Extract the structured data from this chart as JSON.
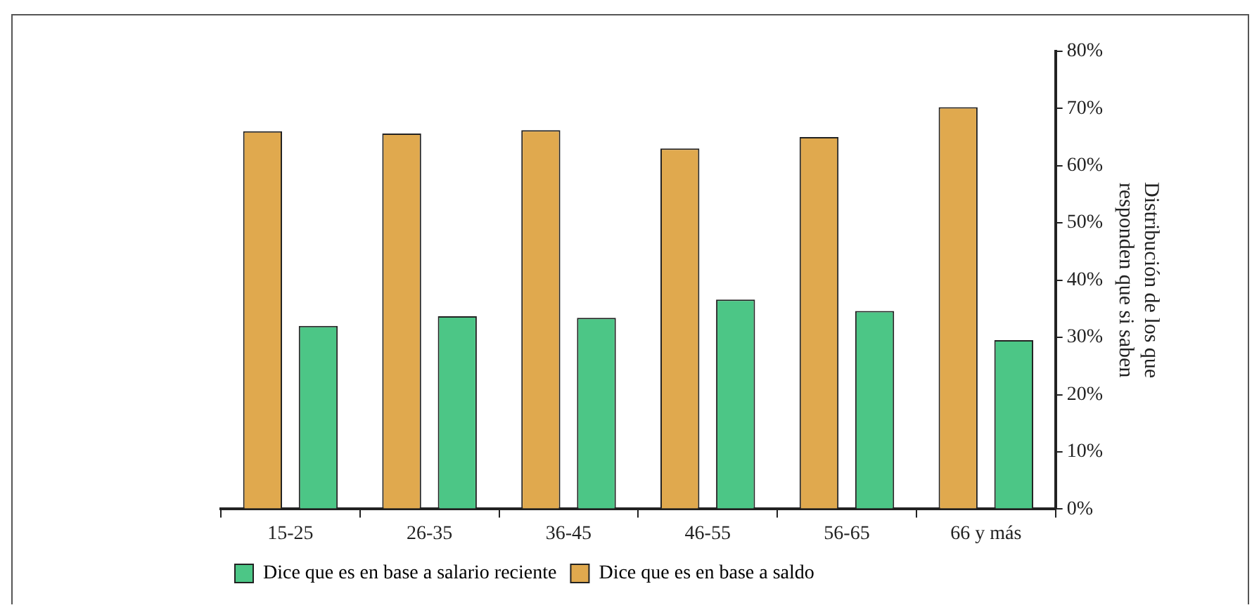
{
  "chart_data": {
    "type": "bar",
    "ylabel": "Distribución de los que responden que si saben",
    "categories": [
      "15-25",
      "26-35",
      "36-45",
      "46-55",
      "56-65",
      "66 y más"
    ],
    "series": [
      {
        "name": "Dice que es en base a saldo",
        "color": "#e0a94e",
        "values": [
          66,
          65.6,
          66.2,
          63,
          65,
          70.2
        ]
      },
      {
        "name": "Dice que es en base a salario reciente",
        "color": "#4cc686",
        "values": [
          32,
          33.7,
          33.4,
          36.6,
          34.6,
          29.5
        ]
      }
    ],
    "ylim": [
      0,
      80
    ],
    "yticks": [
      {
        "value": 0,
        "label": "0%"
      },
      {
        "value": 10,
        "label": "10%"
      },
      {
        "value": 20,
        "label": "20%"
      },
      {
        "value": 30,
        "label": "30%"
      },
      {
        "value": 40,
        "label": "40%"
      },
      {
        "value": 50,
        "label": "50%"
      },
      {
        "value": 60,
        "label": "60%"
      },
      {
        "value": 70,
        "label": "70%"
      },
      {
        "value": 80,
        "label": "80%"
      }
    ],
    "grid": false,
    "legend": "bottom"
  }
}
